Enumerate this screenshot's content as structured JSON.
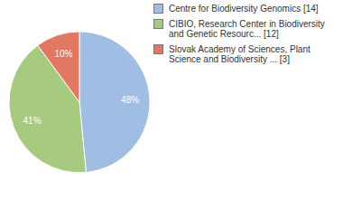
{
  "chart_data": {
    "type": "pie",
    "categories": [
      "Centre for Biodiversity Genomics [14]",
      "CIBIO, Research Center in Biodiversity and Genetic Resourc... [12]",
      "Slovak Academy of Sciences, Plant Science and Biodiversity ... [3]"
    ],
    "values": [
      48,
      41,
      10
    ],
    "value_labels": [
      "48%",
      "41%",
      "10%"
    ],
    "colors": [
      "#a0bde3",
      "#a6ca7e",
      "#e27863"
    ],
    "data_labels": true,
    "legend": "right"
  }
}
